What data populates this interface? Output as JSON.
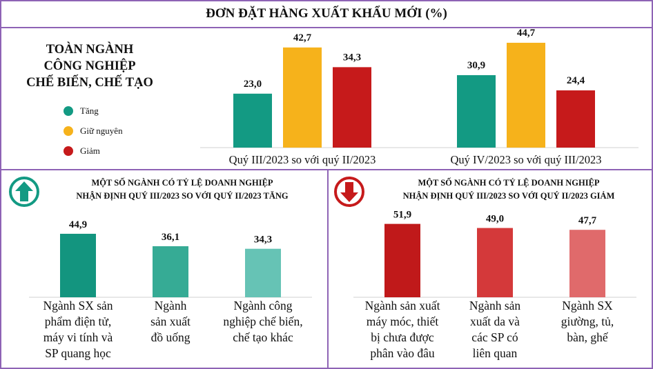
{
  "title": "ĐƠN ĐẶT HÀNG XUẤT KHẨU MỚI (%)",
  "colors": {
    "frame": "#8e63b5",
    "increase": "#139a83",
    "same": "#f6b21b",
    "decrease": "#c61a1b"
  },
  "top": {
    "heading": [
      "TOÀN NGÀNH",
      "CÔNG NGHIỆP",
      "CHẾ BIẾN, CHẾ TẠO"
    ],
    "legend": [
      {
        "label": "Tăng",
        "color": "#139a83"
      },
      {
        "label": "Giữ nguyên",
        "color": "#f6b21b"
      },
      {
        "label": "Giảm",
        "color": "#c61a1b"
      }
    ]
  },
  "left_panel": {
    "title_line1": "MỘT SỐ NGÀNH CÓ TỶ LỆ DOANH NGHIỆP",
    "title_line2": "NHẬN ĐỊNH QUÝ III/2023 SO VỚI QUÝ II/2023 TĂNG",
    "icon": "arrow-up-circle-icon"
  },
  "right_panel": {
    "title_line1": "MỘT SỐ NGÀNH CÓ TỶ LỆ DOANH NGHIỆP",
    "title_line2": "NHẬN ĐỊNH QUÝ III/2023 SO VỚI QUÝ II/2023 GIẢM",
    "icon": "arrow-down-circle-icon"
  },
  "chart_data": [
    {
      "type": "bar",
      "categories": [
        "Quý III/2023 so với quý II/2023",
        "Quý IV/2023 so với quý III/2023"
      ],
      "series": [
        {
          "name": "Tăng",
          "values": [
            23.0,
            30.9
          ],
          "labels": [
            "23,0",
            "30,9"
          ],
          "color": "#139a83"
        },
        {
          "name": "Giữ nguyên",
          "values": [
            42.7,
            44.7
          ],
          "labels": [
            "42,7",
            "44,7"
          ],
          "color": "#f6b21b"
        },
        {
          "name": "Giảm",
          "values": [
            34.3,
            24.4
          ],
          "labels": [
            "34,3",
            "24,4"
          ],
          "color": "#c61a1b"
        }
      ],
      "legend": "left"
    },
    {
      "type": "bar",
      "categories": [
        "Ngành SX sản phẩm điện tử, máy vi tính và SP quang học",
        "Ngành sản xuất đồ uống",
        "Ngành công nghiệp chế biến, chế tạo khác"
      ],
      "category_lines": [
        [
          "Ngành SX sản",
          "phẩm điện tử,",
          "máy vi tính và",
          "SP quang học"
        ],
        [
          "Ngành",
          "sản xuất",
          "đồ uống"
        ],
        [
          "Ngành công",
          "nghiệp chế biến,",
          "chế tạo khác"
        ]
      ],
      "values": [
        44.9,
        36.1,
        34.3
      ],
      "labels": [
        "44,9",
        "36,1",
        "34,3"
      ],
      "colors": [
        "#13957f",
        "#36ab95",
        "#66c3b5"
      ]
    },
    {
      "type": "bar",
      "categories": [
        "Ngành sản xuất máy móc, thiết bị chưa được phân vào đâu",
        "Ngành sản xuất da và các SP có liên quan",
        "Ngành SX giường, tủ, bàn, ghế"
      ],
      "category_lines": [
        [
          "Ngành sản xuất",
          "máy móc, thiết",
          "bị chưa được",
          "phân vào đâu"
        ],
        [
          "Ngành sản",
          "xuất da và",
          "các SP có",
          "liên quan"
        ],
        [
          "Ngành SX",
          "giường, tủ,",
          "bàn, ghế"
        ]
      ],
      "values": [
        51.9,
        49.0,
        47.7
      ],
      "labels": [
        "51,9",
        "49,0",
        "47,7"
      ],
      "colors": [
        "#c0191a",
        "#d4393a",
        "#e06a6b"
      ]
    }
  ]
}
